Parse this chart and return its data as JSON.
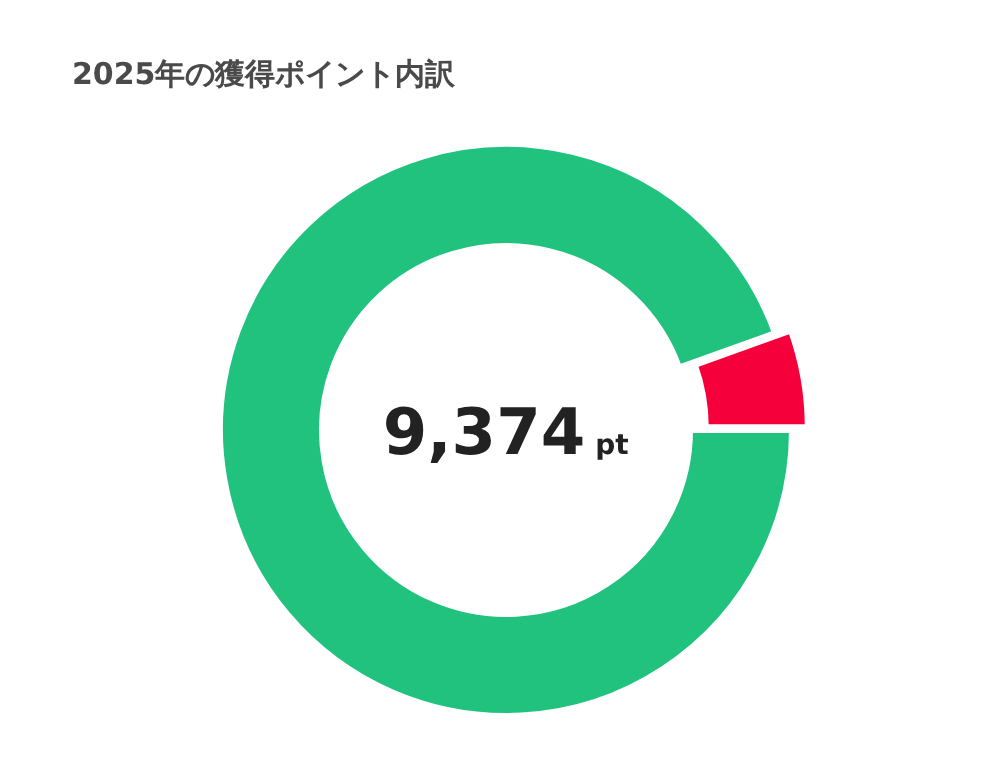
{
  "chart_data": {
    "type": "donut",
    "title": "2025年の獲得ポイント内訳",
    "categories": [
      null,
      null
    ],
    "values": [
      94.5,
      5.5
    ],
    "colors": [
      "#20c27e",
      "#f5003a"
    ],
    "annotations": [
      "9,374",
      "pt"
    ]
  }
}
